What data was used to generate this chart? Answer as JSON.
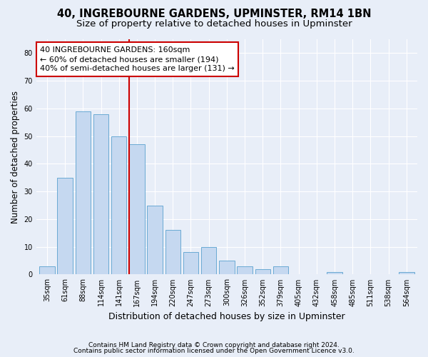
{
  "title": "40, INGREBOURNE GARDENS, UPMINSTER, RM14 1BN",
  "subtitle": "Size of property relative to detached houses in Upminster",
  "xlabel": "Distribution of detached houses by size in Upminster",
  "ylabel": "Number of detached properties",
  "categories": [
    "35sqm",
    "61sqm",
    "88sqm",
    "114sqm",
    "141sqm",
    "167sqm",
    "194sqm",
    "220sqm",
    "247sqm",
    "273sqm",
    "300sqm",
    "326sqm",
    "352sqm",
    "379sqm",
    "405sqm",
    "432sqm",
    "458sqm",
    "485sqm",
    "511sqm",
    "538sqm",
    "564sqm"
  ],
  "values": [
    3,
    35,
    59,
    58,
    50,
    47,
    25,
    16,
    8,
    10,
    5,
    3,
    2,
    3,
    0,
    0,
    1,
    0,
    0,
    0,
    1
  ],
  "bar_color": "#c5d8f0",
  "bar_edge_color": "#6aaad4",
  "bar_width": 0.85,
  "ylim": [
    0,
    85
  ],
  "yticks": [
    0,
    10,
    20,
    30,
    40,
    50,
    60,
    70,
    80
  ],
  "property_label": "40 INGREBOURNE GARDENS: 160sqm",
  "annotation_line1": "← 60% of detached houses are smaller (194)",
  "annotation_line2": "40% of semi-detached houses are larger (131) →",
  "red_line_index": 5,
  "annotation_box_color": "#ffffff",
  "annotation_box_edge": "#cc0000",
  "red_line_color": "#cc0000",
  "footnote1": "Contains HM Land Registry data © Crown copyright and database right 2024.",
  "footnote2": "Contains public sector information licensed under the Open Government Licence v3.0.",
  "background_color": "#e8eef8",
  "plot_bg_color": "#e8eef8",
  "grid_color": "#ffffff",
  "title_fontsize": 10.5,
  "subtitle_fontsize": 9.5,
  "xlabel_fontsize": 9,
  "ylabel_fontsize": 8.5,
  "tick_fontsize": 7,
  "annot_fontsize": 8,
  "footnote_fontsize": 6.5
}
